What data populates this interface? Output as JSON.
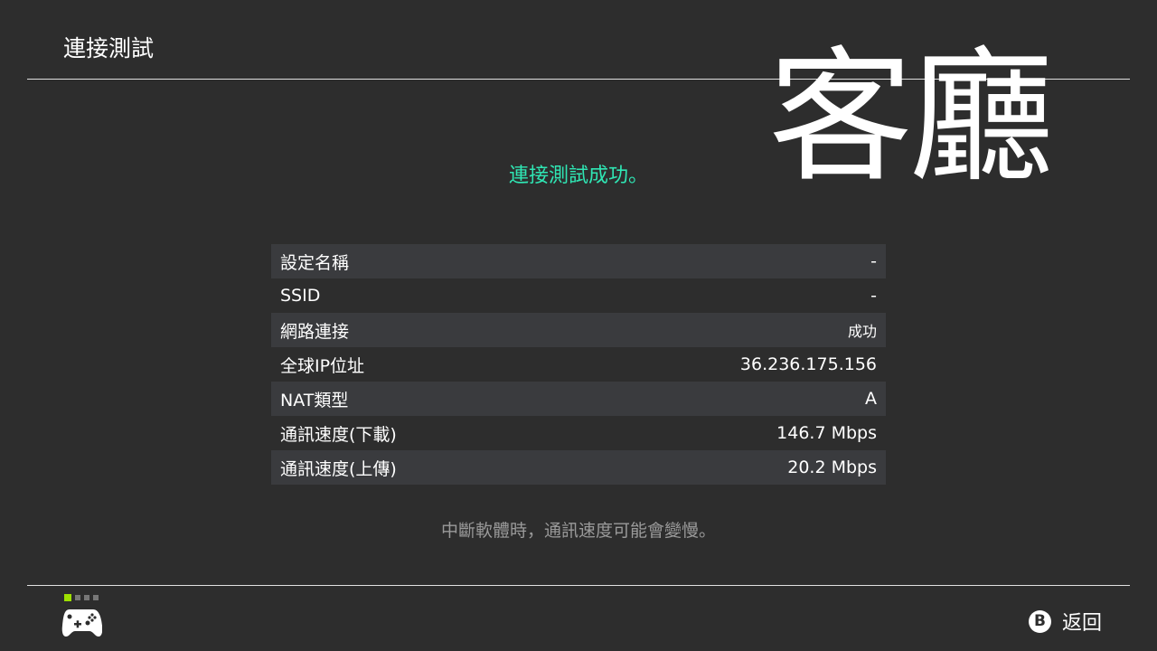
{
  "header": {
    "title": "連接測試"
  },
  "overlay_text": "客廳",
  "status": "連接測試成功。",
  "rows": [
    {
      "label": "設定名稱",
      "value": "-"
    },
    {
      "label": "SSID",
      "value": "-"
    },
    {
      "label": "網路連接",
      "value": "成功"
    },
    {
      "label": "全球IP位址",
      "value": "36.236.175.156"
    },
    {
      "label": "NAT類型",
      "value": "A"
    },
    {
      "label": "通訊速度(下載)",
      "value": "146.7 Mbps"
    },
    {
      "label": "通訊速度(上傳)",
      "value": "20.2 Mbps"
    }
  ],
  "note": "中斷軟體時，通訊速度可能會變慢。",
  "footer": {
    "controller_icon": "gamepad-icon",
    "button_glyph": "B",
    "back_label": "返回",
    "active_color": "#9ee000",
    "accent_color": "#2fe6b4"
  }
}
